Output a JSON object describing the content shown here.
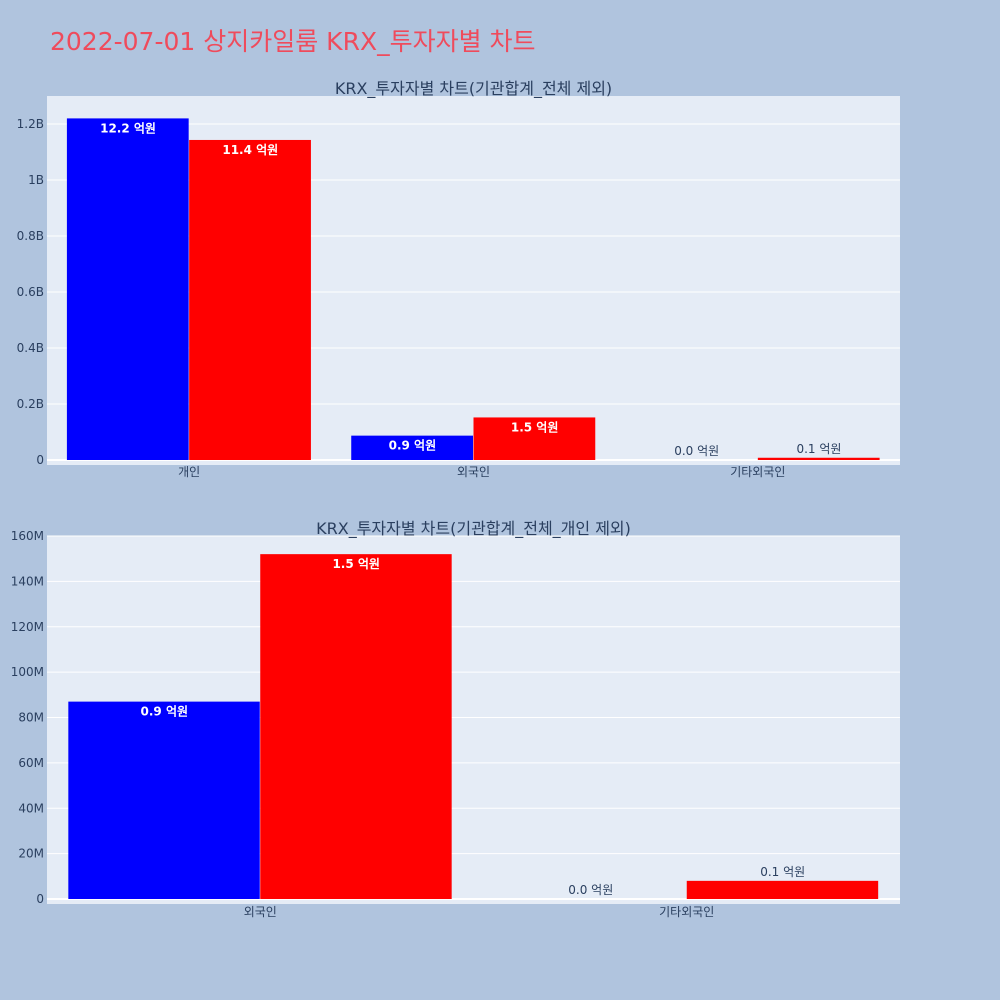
{
  "page_title": "2022-07-01 상지카일룸 KRX_투자자별 차트",
  "colors": {
    "background": "#b0c4de",
    "title": "#ef4b5c",
    "plot_bg": "#e5ecf6",
    "buy": "#0000ff",
    "sell": "#ff0000",
    "text": "#2a3f5f"
  },
  "chart_data": [
    {
      "type": "bar",
      "title": "KRX_투자자별 차트(기관합계_전체 제외)",
      "categories": [
        "개인",
        "외국인",
        "기타외국인"
      ],
      "series": [
        {
          "color": "#0000ff",
          "values": [
            1220000000,
            87000000,
            0
          ],
          "labels": [
            "12.2 억원",
            "0.9 억원",
            "0.0 억원"
          ]
        },
        {
          "color": "#ff0000",
          "values": [
            1143000000,
            152000000,
            8000000
          ],
          "labels": [
            "11.4 억원",
            "1.5 억원",
            "0.1 억원"
          ]
        }
      ],
      "ylim": [
        0,
        1300000000
      ],
      "yticks": [
        0,
        200000000,
        400000000,
        600000000,
        800000000,
        1000000000,
        1200000000
      ],
      "ytick_labels": [
        "0",
        "0.2B",
        "0.4B",
        "0.6B",
        "0.8B",
        "1B",
        "1.2B"
      ],
      "grid": true,
      "legend": "none"
    },
    {
      "type": "bar",
      "title": "KRX_투자자별 차트(기관합계_전체_개인 제외)",
      "categories": [
        "외국인",
        "기타외국인"
      ],
      "series": [
        {
          "color": "#0000ff",
          "values": [
            87000000,
            0
          ],
          "labels": [
            "0.9 억원",
            "0.0 억원"
          ]
        },
        {
          "color": "#ff0000",
          "values": [
            152000000,
            8000000
          ],
          "labels": [
            "1.5 억원",
            "0.1 억원"
          ]
        }
      ],
      "ylim": [
        0,
        160000000
      ],
      "yticks": [
        0,
        20000000,
        40000000,
        60000000,
        80000000,
        100000000,
        120000000,
        140000000,
        160000000
      ],
      "ytick_labels": [
        "0",
        "20M",
        "40M",
        "60M",
        "80M",
        "100M",
        "120M",
        "140M",
        "160M"
      ],
      "grid": true,
      "legend": "none"
    }
  ]
}
